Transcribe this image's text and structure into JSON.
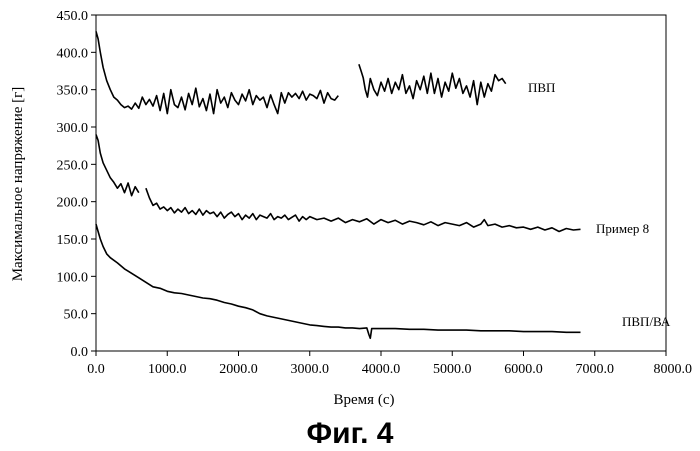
{
  "caption": "Фиг.  4",
  "chart_data": {
    "type": "line",
    "xlabel": "Время (с)",
    "ylabel": "Максимальное напряжение [г]",
    "xlim": [
      0,
      8000
    ],
    "ylim": [
      0,
      450
    ],
    "x_ticks": [
      "0.0",
      "1000.0",
      "2000.0",
      "3000.0",
      "4000.0",
      "5000.0",
      "6000.0",
      "7000.0",
      "8000.0"
    ],
    "y_ticks": [
      "0.0",
      "50.0",
      "100.0",
      "150.0",
      "200.0",
      "250.0",
      "300.0",
      "350.0",
      "400.0",
      "450.0"
    ],
    "grid": false,
    "legend": "none",
    "series": [
      {
        "name": "ПВП",
        "segments": [
          [
            [
              0,
              428
            ],
            [
              30,
              418
            ],
            [
              60,
              400
            ],
            [
              100,
              380
            ],
            [
              150,
              362
            ],
            [
              200,
              350
            ],
            [
              250,
              340
            ],
            [
              300,
              336
            ],
            [
              350,
              330
            ],
            [
              400,
              326
            ],
            [
              450,
              328
            ],
            [
              500,
              324
            ],
            [
              550,
              332
            ],
            [
              600,
              325
            ],
            [
              650,
              340
            ],
            [
              700,
              330
            ],
            [
              750,
              337
            ],
            [
              800,
              328
            ],
            [
              850,
              342
            ],
            [
              900,
              322
            ],
            [
              950,
              345
            ],
            [
              1000,
              318
            ],
            [
              1050,
              350
            ],
            [
              1100,
              330
            ],
            [
              1150,
              326
            ],
            [
              1200,
              340
            ],
            [
              1250,
              323
            ],
            [
              1300,
              345
            ],
            [
              1350,
              330
            ],
            [
              1400,
              352
            ],
            [
              1450,
              327
            ],
            [
              1500,
              338
            ],
            [
              1550,
              322
            ],
            [
              1600,
              344
            ],
            [
              1650,
              318
            ],
            [
              1700,
              350
            ],
            [
              1750,
              332
            ],
            [
              1800,
              340
            ],
            [
              1850,
              326
            ],
            [
              1900,
              346
            ],
            [
              1950,
              336
            ],
            [
              2000,
              330
            ],
            [
              2050,
              344
            ],
            [
              2100,
              335
            ],
            [
              2150,
              350
            ],
            [
              2200,
              330
            ],
            [
              2250,
              342
            ],
            [
              2300,
              336
            ],
            [
              2350,
              340
            ],
            [
              2400,
              326
            ],
            [
              2450,
              343
            ],
            [
              2500,
              330
            ],
            [
              2550,
              318
            ],
            [
              2600,
              346
            ],
            [
              2650,
              332
            ],
            [
              2700,
              346
            ],
            [
              2750,
              340
            ],
            [
              2800,
              345
            ],
            [
              2850,
              338
            ],
            [
              2900,
              348
            ],
            [
              2950,
              336
            ],
            [
              3000,
              344
            ],
            [
              3050,
              342
            ],
            [
              3100,
              338
            ],
            [
              3150,
              349
            ],
            [
              3200,
              332
            ],
            [
              3250,
              346
            ],
            [
              3300,
              338
            ],
            [
              3350,
              336
            ],
            [
              3400,
              342
            ]
          ],
          [
            [
              3690,
              384
            ],
            [
              3720,
              375
            ],
            [
              3750,
              366
            ],
            [
              3780,
              350
            ],
            [
              3810,
              340
            ],
            [
              3850,
              365
            ],
            [
              3900,
              350
            ],
            [
              3950,
              342
            ],
            [
              4000,
              360
            ],
            [
              4050,
              348
            ],
            [
              4100,
              365
            ],
            [
              4150,
              345
            ],
            [
              4200,
              360
            ],
            [
              4250,
              350
            ],
            [
              4300,
              370
            ],
            [
              4350,
              345
            ],
            [
              4400,
              355
            ],
            [
              4450,
              338
            ],
            [
              4500,
              362
            ],
            [
              4550,
              350
            ],
            [
              4600,
              368
            ],
            [
              4650,
              345
            ],
            [
              4700,
              372
            ],
            [
              4750,
              345
            ],
            [
              4800,
              365
            ],
            [
              4850,
              340
            ],
            [
              4900,
              360
            ],
            [
              4950,
              348
            ],
            [
              5000,
              372
            ],
            [
              5050,
              352
            ],
            [
              5100,
              365
            ],
            [
              5150,
              345
            ],
            [
              5200,
              355
            ],
            [
              5250,
              340
            ],
            [
              5300,
              362
            ],
            [
              5350,
              330
            ],
            [
              5400,
              360
            ],
            [
              5450,
              340
            ],
            [
              5500,
              358
            ],
            [
              5550,
              348
            ],
            [
              5600,
              370
            ],
            [
              5650,
              362
            ],
            [
              5700,
              365
            ],
            [
              5750,
              358
            ]
          ]
        ]
      },
      {
        "name": "Пример 8",
        "segments": [
          [
            [
              0,
              290
            ],
            [
              30,
              282
            ],
            [
              60,
              265
            ],
            [
              100,
              252
            ],
            [
              150,
              242
            ],
            [
              200,
              232
            ],
            [
              250,
              226
            ],
            [
              300,
              218
            ],
            [
              350,
              224
            ],
            [
              400,
              212
            ],
            [
              450,
              225
            ],
            [
              500,
              208
            ],
            [
              550,
              220
            ],
            [
              600,
              212
            ]
          ],
          [
            [
              700,
              218
            ],
            [
              750,
              205
            ],
            [
              800,
              195
            ],
            [
              850,
              198
            ],
            [
              900,
              190
            ],
            [
              950,
              193
            ],
            [
              1000,
              188
            ],
            [
              1050,
              192
            ],
            [
              1100,
              185
            ],
            [
              1150,
              190
            ],
            [
              1200,
              186
            ],
            [
              1250,
              192
            ],
            [
              1300,
              184
            ],
            [
              1350,
              188
            ],
            [
              1400,
              183
            ],
            [
              1450,
              190
            ],
            [
              1500,
              182
            ],
            [
              1550,
              188
            ],
            [
              1600,
              184
            ],
            [
              1650,
              186
            ],
            [
              1700,
              180
            ],
            [
              1750,
              186
            ],
            [
              1800,
              178
            ],
            [
              1850,
              183
            ],
            [
              1900,
              186
            ],
            [
              1950,
              180
            ],
            [
              2000,
              184
            ],
            [
              2050,
              176
            ],
            [
              2100,
              182
            ],
            [
              2150,
              178
            ],
            [
              2200,
              184
            ],
            [
              2250,
              176
            ],
            [
              2300,
              182
            ],
            [
              2350,
              180
            ],
            [
              2400,
              178
            ],
            [
              2450,
              184
            ],
            [
              2500,
              176
            ],
            [
              2550,
              180
            ],
            [
              2600,
              178
            ],
            [
              2650,
              182
            ],
            [
              2700,
              176
            ],
            [
              2750,
              179
            ],
            [
              2800,
              182
            ],
            [
              2850,
              174
            ],
            [
              2900,
              180
            ],
            [
              2950,
              176
            ],
            [
              3000,
              180
            ],
            [
              3100,
              176
            ],
            [
              3200,
              178
            ],
            [
              3300,
              174
            ],
            [
              3400,
              178
            ],
            [
              3500,
              172
            ],
            [
              3600,
              176
            ],
            [
              3700,
              173
            ],
            [
              3800,
              177
            ],
            [
              3900,
              170
            ],
            [
              4000,
              176
            ],
            [
              4100,
              172
            ],
            [
              4200,
              175
            ],
            [
              4300,
              170
            ],
            [
              4400,
              174
            ],
            [
              4500,
              172
            ],
            [
              4600,
              169
            ],
            [
              4700,
              173
            ],
            [
              4800,
              168
            ],
            [
              4900,
              172
            ],
            [
              5000,
              170
            ],
            [
              5100,
              168
            ],
            [
              5200,
              172
            ],
            [
              5300,
              166
            ],
            [
              5400,
              170
            ],
            [
              5450,
              176
            ],
            [
              5500,
              168
            ],
            [
              5600,
              170
            ],
            [
              5700,
              166
            ],
            [
              5800,
              168
            ],
            [
              5900,
              165
            ],
            [
              6000,
              166
            ],
            [
              6100,
              163
            ],
            [
              6200,
              166
            ],
            [
              6300,
              162
            ],
            [
              6400,
              165
            ],
            [
              6500,
              160
            ],
            [
              6600,
              164
            ],
            [
              6700,
              162
            ],
            [
              6800,
              163
            ]
          ]
        ]
      },
      {
        "name": "ПВП/ВА",
        "segments": [
          [
            [
              0,
              170
            ],
            [
              30,
              160
            ],
            [
              60,
              150
            ],
            [
              100,
              140
            ],
            [
              150,
              130
            ],
            [
              200,
              125
            ],
            [
              300,
              118
            ],
            [
              400,
              110
            ],
            [
              500,
              104
            ],
            [
              600,
              98
            ],
            [
              700,
              92
            ],
            [
              800,
              86
            ],
            [
              900,
              84
            ],
            [
              1000,
              80
            ],
            [
              1100,
              78
            ],
            [
              1200,
              77
            ],
            [
              1300,
              75
            ],
            [
              1400,
              73
            ],
            [
              1500,
              71
            ],
            [
              1600,
              70
            ],
            [
              1700,
              68
            ],
            [
              1800,
              65
            ],
            [
              1900,
              63
            ],
            [
              2000,
              60
            ],
            [
              2100,
              58
            ],
            [
              2200,
              55
            ],
            [
              2300,
              50
            ],
            [
              2400,
              47
            ],
            [
              2500,
              45
            ],
            [
              2600,
              43
            ],
            [
              2700,
              41
            ],
            [
              2800,
              39
            ],
            [
              2900,
              37
            ],
            [
              3000,
              35
            ],
            [
              3100,
              34
            ],
            [
              3200,
              33
            ],
            [
              3300,
              32
            ],
            [
              3400,
              32
            ],
            [
              3500,
              31
            ],
            [
              3600,
              31
            ],
            [
              3700,
              30
            ],
            [
              3800,
              31
            ],
            [
              3830,
              22
            ],
            [
              3850,
              17
            ],
            [
              3870,
              30
            ],
            [
              3900,
              30
            ],
            [
              4000,
              30
            ],
            [
              4200,
              30
            ],
            [
              4400,
              29
            ],
            [
              4600,
              29
            ],
            [
              4800,
              28
            ],
            [
              5000,
              28
            ],
            [
              5200,
              28
            ],
            [
              5400,
              27
            ],
            [
              5600,
              27
            ],
            [
              5800,
              27
            ],
            [
              6000,
              26
            ],
            [
              6200,
              26
            ],
            [
              6400,
              26
            ],
            [
              6600,
              25
            ],
            [
              6800,
              25
            ]
          ]
        ]
      }
    ]
  }
}
